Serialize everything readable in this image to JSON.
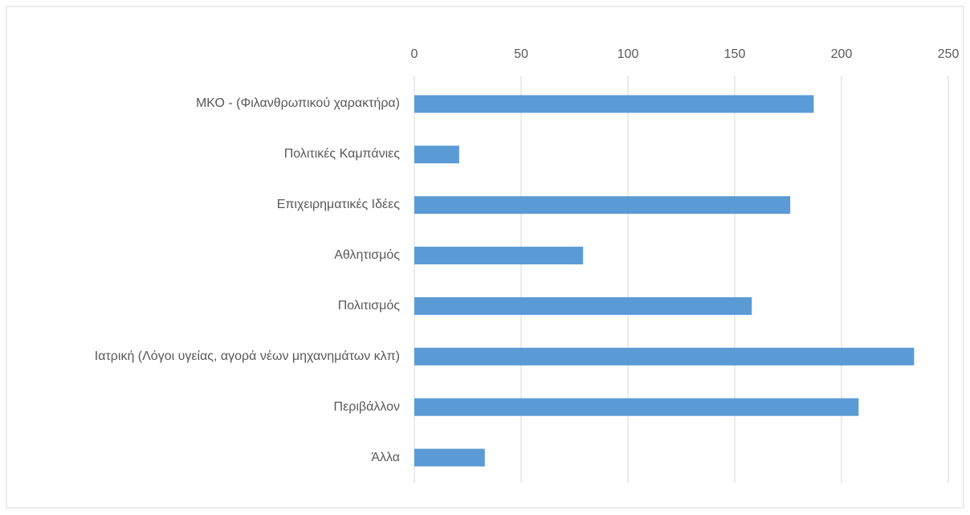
{
  "chart_data": {
    "type": "bar",
    "orientation": "horizontal",
    "categories": [
      "ΜΚΟ - (Φιλανθρωπικού χαρακτήρα)",
      "Πολιτικές Καμπάνιες",
      "Επιχειρηματικές Ιδέες",
      "Αθλητισμός",
      "Πολιτισμός",
      "Ιατρική (Λόγοι υγείας, αγορά νέων μηχανημάτων κλπ)",
      "Περιβάλλον",
      "Άλλα"
    ],
    "values": [
      187,
      21,
      176,
      79,
      158,
      234,
      208,
      33
    ],
    "color": "#5b9bd5",
    "xlim": [
      0,
      250
    ],
    "xticks": [
      0,
      50,
      100,
      150,
      200,
      250
    ],
    "grid": true
  }
}
